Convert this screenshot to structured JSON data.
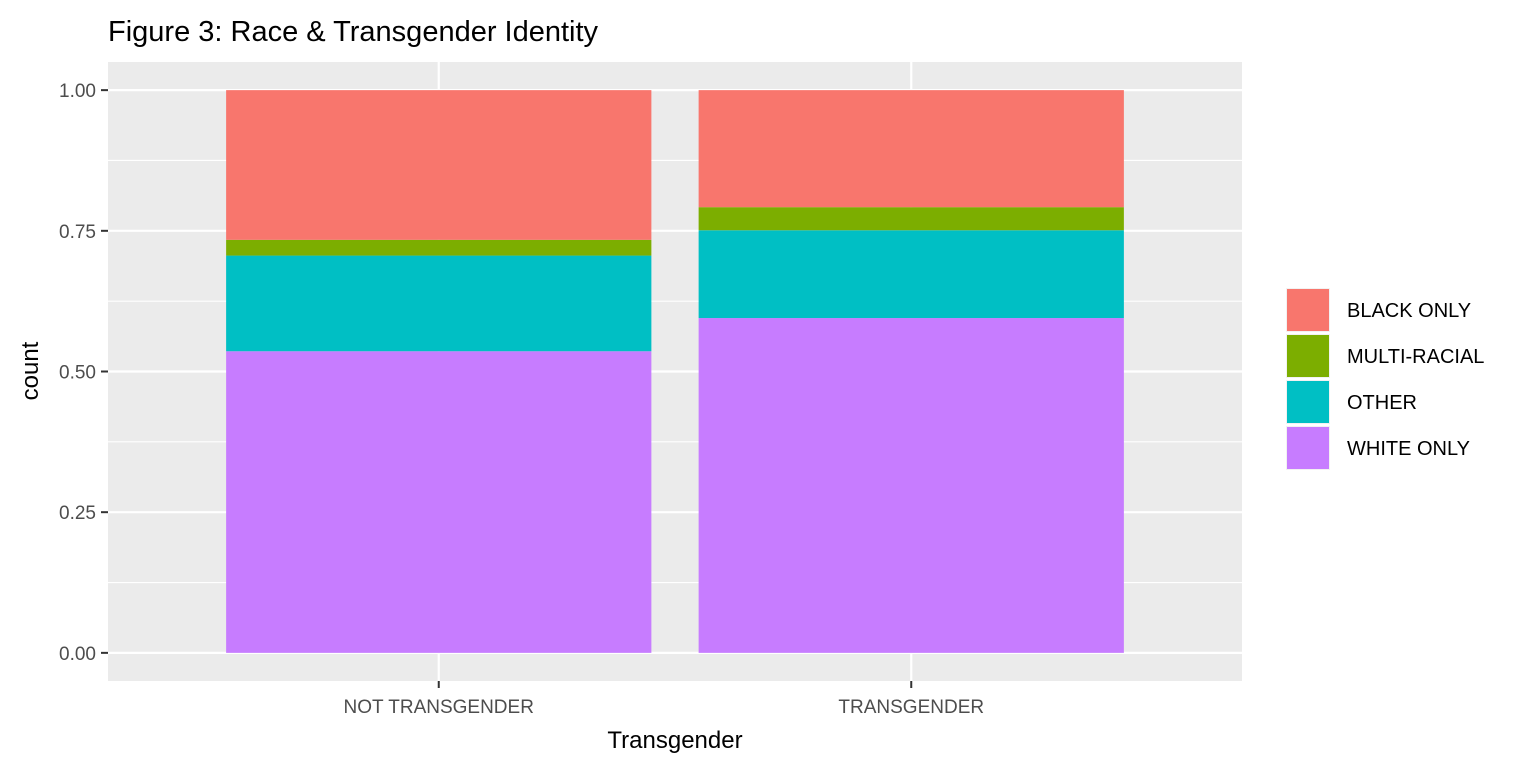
{
  "chart_data": {
    "type": "bar",
    "stacked": true,
    "title": "Figure 3: Race & Transgender Identity",
    "xlabel": "Transgender",
    "ylabel": "count",
    "categories": [
      "NOT TRANSGENDER",
      "TRANSGENDER"
    ],
    "ylim": [
      -0.05,
      1.05
    ],
    "yticks": [
      0.0,
      0.25,
      0.5,
      0.75,
      1.0
    ],
    "ytick_labels": [
      "0.00",
      "0.25",
      "0.50",
      "0.75",
      "1.00"
    ],
    "series": [
      {
        "name": "WHITE ONLY",
        "color": "#C77CFF",
        "values": [
          0.536,
          0.595
        ]
      },
      {
        "name": "OTHER",
        "color": "#00BFC4",
        "values": [
          0.17,
          0.156
        ]
      },
      {
        "name": "MULTI-RACIAL",
        "color": "#7CAE00",
        "values": [
          0.028,
          0.041
        ]
      },
      {
        "name": "BLACK ONLY",
        "color": "#F8766D",
        "values": [
          0.266,
          0.208
        ]
      }
    ],
    "legend_order": [
      "BLACK ONLY",
      "MULTI-RACIAL",
      "OTHER",
      "WHITE ONLY"
    ],
    "legend_position": "right",
    "grid": true,
    "panel_background": "#EBEBEB"
  }
}
